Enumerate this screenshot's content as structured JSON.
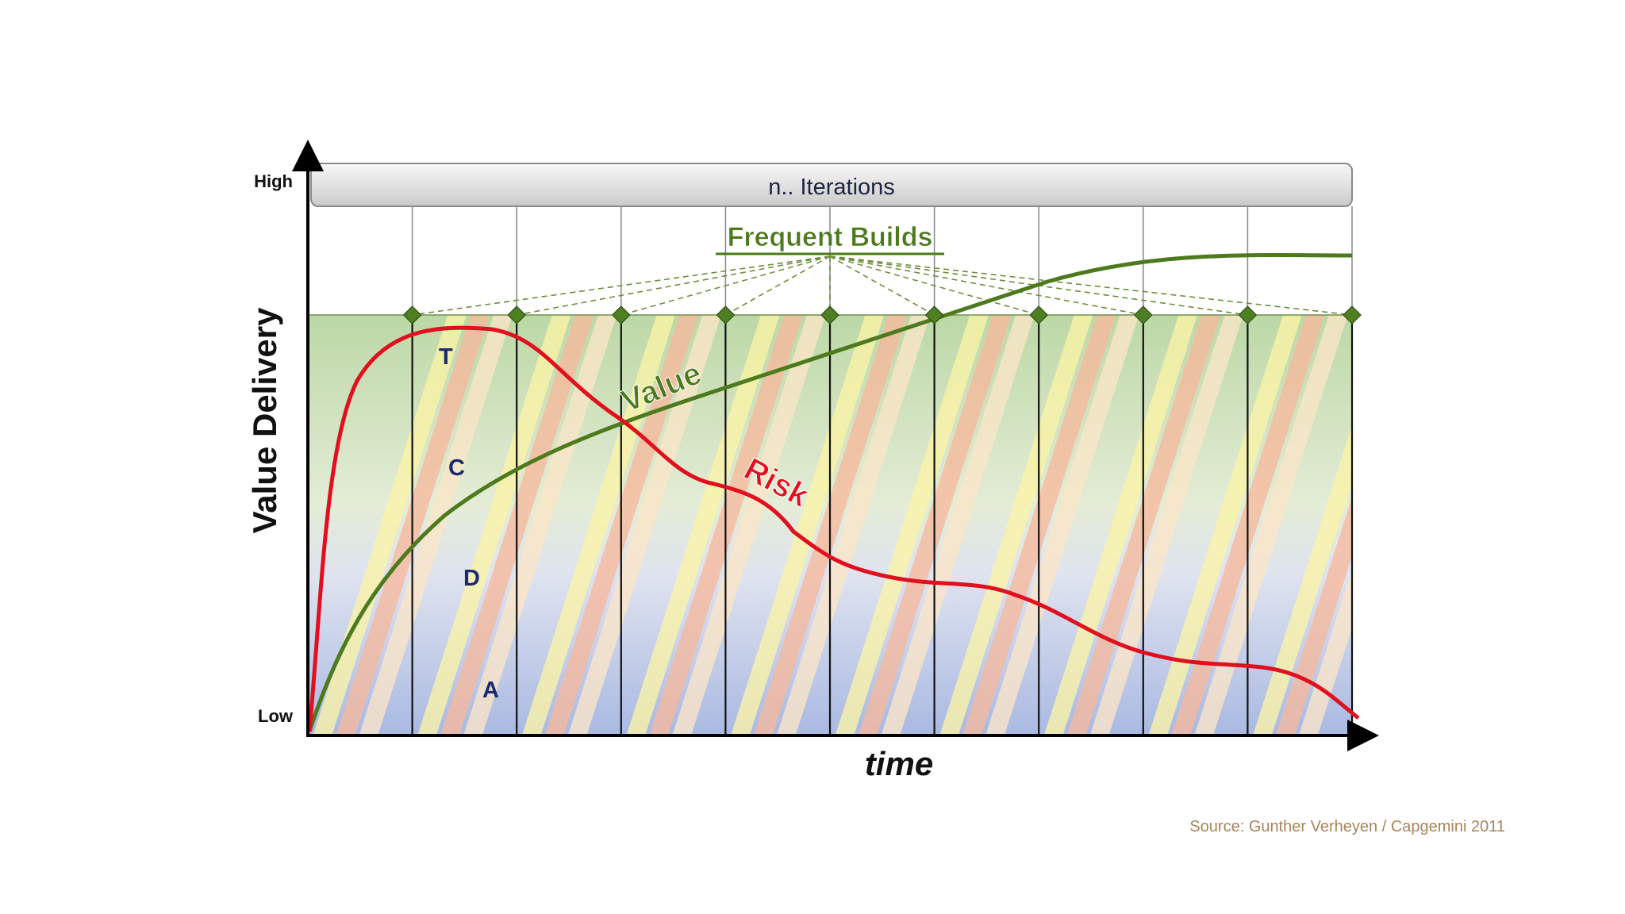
{
  "axes": {
    "y_label": "Value Delivery",
    "y_high": "High",
    "y_low": "Low",
    "x_label": "time"
  },
  "header_bar": {
    "label": "n.. Iterations"
  },
  "builds": {
    "label": "Frequent Builds",
    "count": 10
  },
  "iterations": {
    "count": 10
  },
  "phases": [
    "T",
    "C",
    "D",
    "A"
  ],
  "curves": {
    "value_label": "Value",
    "risk_label": "Risk"
  },
  "source": "Source: Gunther Verheyen / Capgemini 2011",
  "colors": {
    "value": "#4d7a1c",
    "risk": "#e0101e",
    "diamond": "#4f7f23",
    "phase_text": "#1a2a6e",
    "source_text": "#a8845a",
    "builds_text": "#4d7a1c"
  }
}
